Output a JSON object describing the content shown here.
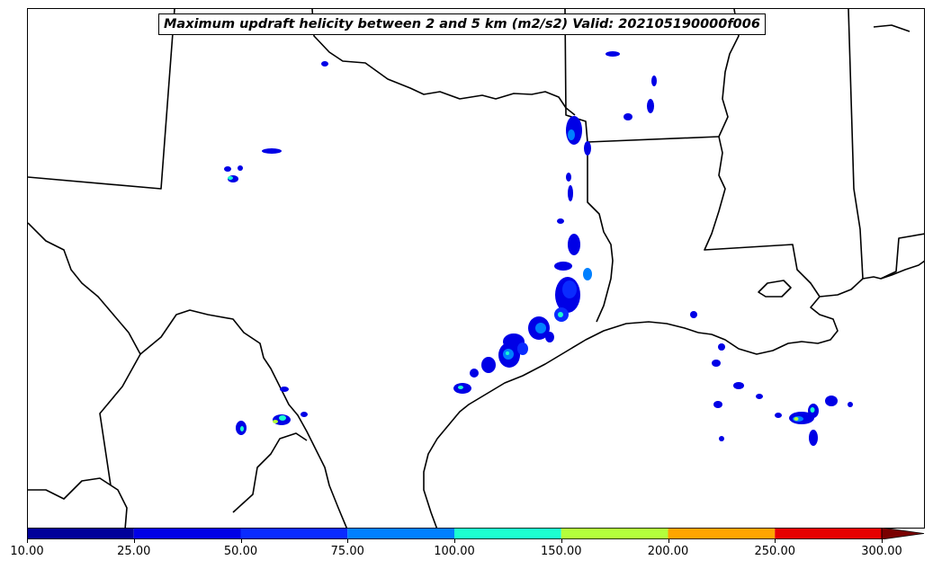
{
  "map": {
    "title": "Maximum updraft helicity between 2 and 5 km (m2/s2) Valid: 202105190000f006"
  },
  "colorbar": {
    "ticks": [
      "10.00",
      "25.00",
      "50.00",
      "75.00",
      "100.00",
      "150.00",
      "200.00",
      "250.00",
      "300.00"
    ],
    "colors": [
      "#00009a",
      "#0000e6",
      "#0a2bff",
      "#0080ff",
      "#1cffd0",
      "#b4ff3c",
      "#ffa500",
      "#e60000"
    ],
    "extend_color": "#7a0000"
  },
  "legend_levels": {
    "low": "#0000e6",
    "mid": "#0080ff",
    "cyan": "#1cffd0",
    "yellow": "#b4ff3c"
  }
}
